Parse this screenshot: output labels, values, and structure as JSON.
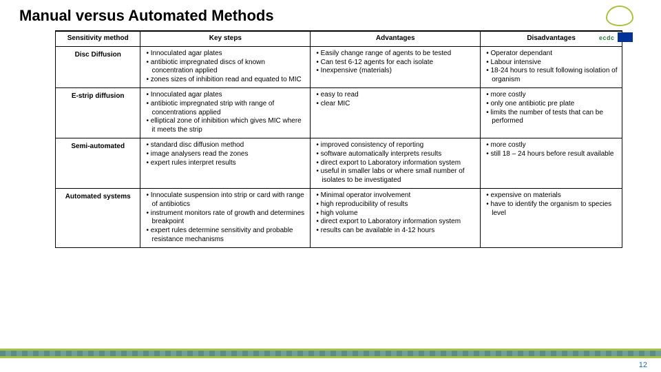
{
  "title": "Manual versus Automated Methods",
  "pageNumber": "12",
  "logo": {
    "text": "ecdc"
  },
  "columns": [
    "Sensitivity method",
    "Key steps",
    "Advantages",
    "Disadvantages"
  ],
  "rows": [
    {
      "method": "Disc Diffusion",
      "keySteps": [
        "Innoculated agar plates",
        "antibiotic impregnated discs of known concentration applied",
        "zones sizes of inhibition read and equated to MIC"
      ],
      "advantages": [
        "Easily change range of agents to be tested",
        "Can test 6-12 agents for each isolate",
        "Inexpensive (materials)"
      ],
      "disadvantages": [
        "Operator dependant",
        "Labour intensive",
        "18-24 hours to result following isolation of organism"
      ]
    },
    {
      "method": "E-strip diffusion",
      "keySteps": [
        "Innoculated agar plates",
        "antibiotic impregnated strip with range of concentrations applied",
        "elliptical zone of inhibition which gives MIC where it meets the strip"
      ],
      "advantages": [
        "easy to read",
        "clear MIC"
      ],
      "disadvantages": [
        "more costly",
        "only one antibiotic pre plate",
        "limits the number of tests  that can be performed"
      ]
    },
    {
      "method": "Semi-automated",
      "keySteps": [
        "standard disc diffusion method",
        "image analysers read the zones",
        "expert rules interpret results"
      ],
      "advantages": [
        "improved consistency of reporting",
        "software automatically interprets results",
        "direct export to Laboratory information system",
        "useful in smaller labs or where small number of isolates  to be investigated"
      ],
      "disadvantages": [
        "more costly",
        "still 18 – 24 hours before result available"
      ]
    },
    {
      "method": "Automated systems",
      "keySteps": [
        "Innoculate suspension into strip or card with range of antibiotics",
        "instrument monitors rate of growth and determines breakpoint",
        "expert rules determine sensitivity and probable resistance mechanisms"
      ],
      "advantages": [
        "Minimal operator involvement",
        "high reproducibility of results",
        "high volume",
        "direct export to Laboratory information system",
        "results can be available in 4-12 hours"
      ],
      "disadvantages": [
        "expensive on materials",
        "have to identify the organism to species level"
      ]
    }
  ],
  "colors": {
    "accent": "#a8c23e",
    "footerTeal": "#5a8a8a",
    "pageNum": "#1a6aa8"
  }
}
